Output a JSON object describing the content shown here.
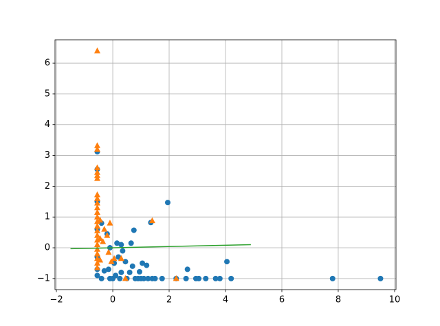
{
  "chart_data": {
    "type": "scatter",
    "xlim": [
      -2.05,
      10.05
    ],
    "ylim": [
      -1.36,
      6.76
    ],
    "xticks": [
      {
        "value": -2,
        "label": "−2"
      },
      0,
      2,
      4,
      6,
      8,
      10
    ],
    "yticks": [
      {
        "value": -1,
        "label": "−1"
      },
      0,
      1,
      2,
      3,
      4,
      5,
      6
    ],
    "grid": true,
    "series": [
      {
        "type": "scatter",
        "marker": "circle",
        "color": "#1f77b4",
        "x": [
          -0.55,
          -0.55,
          -0.55,
          -0.55,
          -0.55,
          -0.55,
          -0.55,
          -0.4,
          -0.4,
          -0.3,
          -0.2,
          -0.15,
          -0.1,
          -0.1,
          0,
          0.05,
          0.1,
          0.15,
          0.2,
          0.25,
          0.3,
          0.3,
          0.35,
          0.45,
          0.5,
          0.6,
          0.65,
          0.7,
          0.75,
          0.8,
          0.9,
          0.95,
          1.0,
          1.05,
          1.1,
          1.2,
          1.25,
          1.35,
          1.4,
          1.5,
          1.75,
          1.95,
          2.25,
          2.6,
          2.65,
          2.95,
          3.05,
          3.3,
          3.65,
          3.8,
          4.05,
          4.2,
          7.8,
          9.5
        ],
        "values": [
          3.12,
          2.55,
          1.5,
          0.6,
          -0.3,
          -0.9,
          -0.7,
          0.8,
          -1,
          -0.75,
          0.45,
          -0.7,
          0,
          -1,
          -1,
          -0.5,
          -0.9,
          0.15,
          -0.3,
          -1,
          0.1,
          -0.8,
          -0.1,
          -0.45,
          -1,
          -0.8,
          0.15,
          -0.6,
          0.57,
          -1,
          -1,
          -0.78,
          -1,
          -0.5,
          -1,
          -0.57,
          -1,
          0.82,
          -1,
          -1,
          -1,
          1.47,
          -1,
          -1,
          -0.7,
          -1,
          -1,
          -1,
          -1,
          -1,
          -0.45,
          -1,
          -1,
          -1
        ]
      },
      {
        "type": "scatter",
        "marker": "triangle",
        "color": "#ff7f0e",
        "x": [
          -0.55,
          -0.55,
          -0.55,
          -0.55,
          -0.55,
          -0.55,
          -0.55,
          -0.55,
          -0.55,
          -0.55,
          -0.55,
          -0.55,
          -0.55,
          -0.55,
          -0.55,
          -0.55,
          -0.55,
          -0.55,
          -0.55,
          -0.55,
          -0.55,
          -0.55,
          -0.55,
          -0.55,
          -0.45,
          -0.45,
          -0.45,
          -0.35,
          -0.3,
          -0.2,
          -0.15,
          -0.1,
          -0.05,
          0.05,
          0.3,
          0.45,
          1.4,
          2.25
        ],
        "values": [
          6.4,
          3.32,
          3.2,
          2.6,
          2.45,
          2.35,
          2.25,
          1.72,
          1.6,
          1.45,
          1.3,
          1.15,
          1.0,
          0.85,
          0.7,
          0.55,
          0.4,
          0.25,
          0.1,
          -0.05,
          -0.2,
          -0.35,
          -0.5,
          -0.65,
          0.9,
          0.3,
          -0.4,
          0.2,
          0.6,
          0.4,
          -0.15,
          0.8,
          -0.45,
          -0.35,
          -0.35,
          -1,
          0.88,
          -1
        ]
      },
      {
        "type": "line",
        "color": "#2ca02c",
        "x": [
          -1.5,
          4.9
        ],
        "values": [
          -0.03,
          0.1
        ]
      }
    ]
  }
}
